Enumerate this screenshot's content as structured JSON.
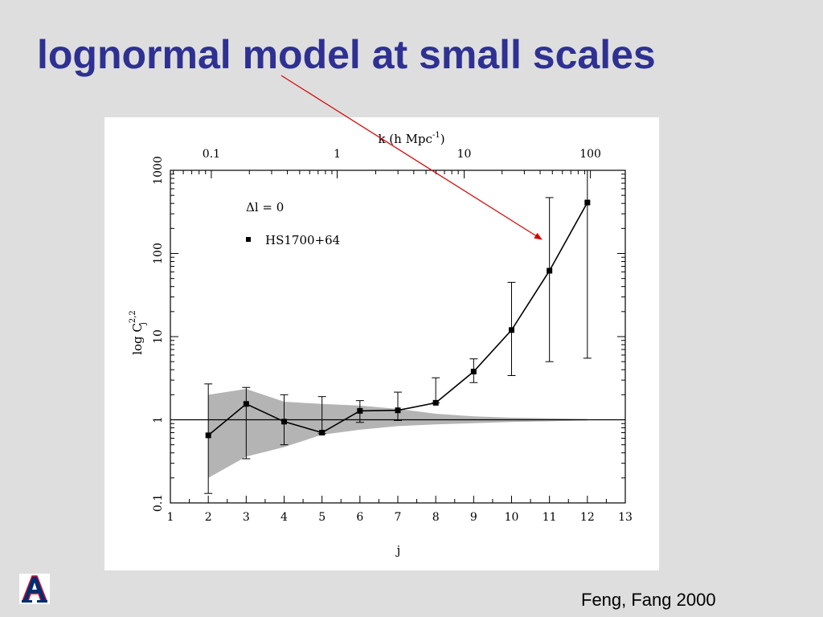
{
  "slide": {
    "title": "lognormal model at small scales",
    "credit": "Feng, Fang 2000",
    "title_color": "#2e3192",
    "arrow_color": "#d40000",
    "logo_icon": "university-of-arizona-a-logo"
  },
  "chart_data": {
    "type": "line",
    "xlabel": "j",
    "ylabel": "log C_j^{2,2}",
    "ylabel_parts": {
      "base": "log C",
      "sub": "j",
      "sup": "2,2"
    },
    "x2label": "k (h Mpc",
    "x2label_sup": "-1",
    "x2label_close": ")",
    "xlim": [
      1,
      13
    ],
    "ylim": [
      0.1,
      1000
    ],
    "yscale": "log",
    "x_ticks": [
      "1",
      "2",
      "3",
      "4",
      "5",
      "6",
      "7",
      "8",
      "9",
      "10",
      "11",
      "12",
      "13"
    ],
    "y_ticks": [
      "0.1",
      "1",
      "10",
      "100",
      "1000"
    ],
    "x2_ticks": [
      "0.1",
      "1",
      "10",
      "100"
    ],
    "x2_tick_positions_j": [
      2.08,
      5.4,
      8.75,
      12.08
    ],
    "annotation": "Δl = 0",
    "legend": {
      "placement": "top-left",
      "label": "HS1700+64"
    },
    "reference_line": 1,
    "series": [
      {
        "name": "HS1700+64",
        "x": [
          2,
          3,
          4,
          5,
          6,
          7,
          8,
          9,
          10,
          11,
          12
        ],
        "y": [
          0.65,
          1.55,
          0.95,
          0.7,
          1.28,
          1.3,
          1.6,
          3.8,
          12,
          62,
          410
        ],
        "err_low": [
          0.13,
          0.34,
          0.5,
          0.68,
          0.93,
          0.98,
          1.6,
          2.8,
          3.4,
          5.0,
          5.5
        ],
        "err_high": [
          2.7,
          2.45,
          2.0,
          1.9,
          1.7,
          2.15,
          3.2,
          5.4,
          45,
          470,
          1000
        ]
      }
    ],
    "band": {
      "x": [
        2,
        3,
        4,
        5,
        6,
        7,
        8,
        9,
        10,
        11,
        12
      ],
      "upper": [
        2.0,
        2.35,
        1.65,
        1.55,
        1.48,
        1.35,
        1.18,
        1.1,
        1.06,
        1.04,
        1.02
      ],
      "lower": [
        0.2,
        0.36,
        0.47,
        0.66,
        0.76,
        0.84,
        0.88,
        0.91,
        0.94,
        0.96,
        0.98
      ]
    }
  }
}
